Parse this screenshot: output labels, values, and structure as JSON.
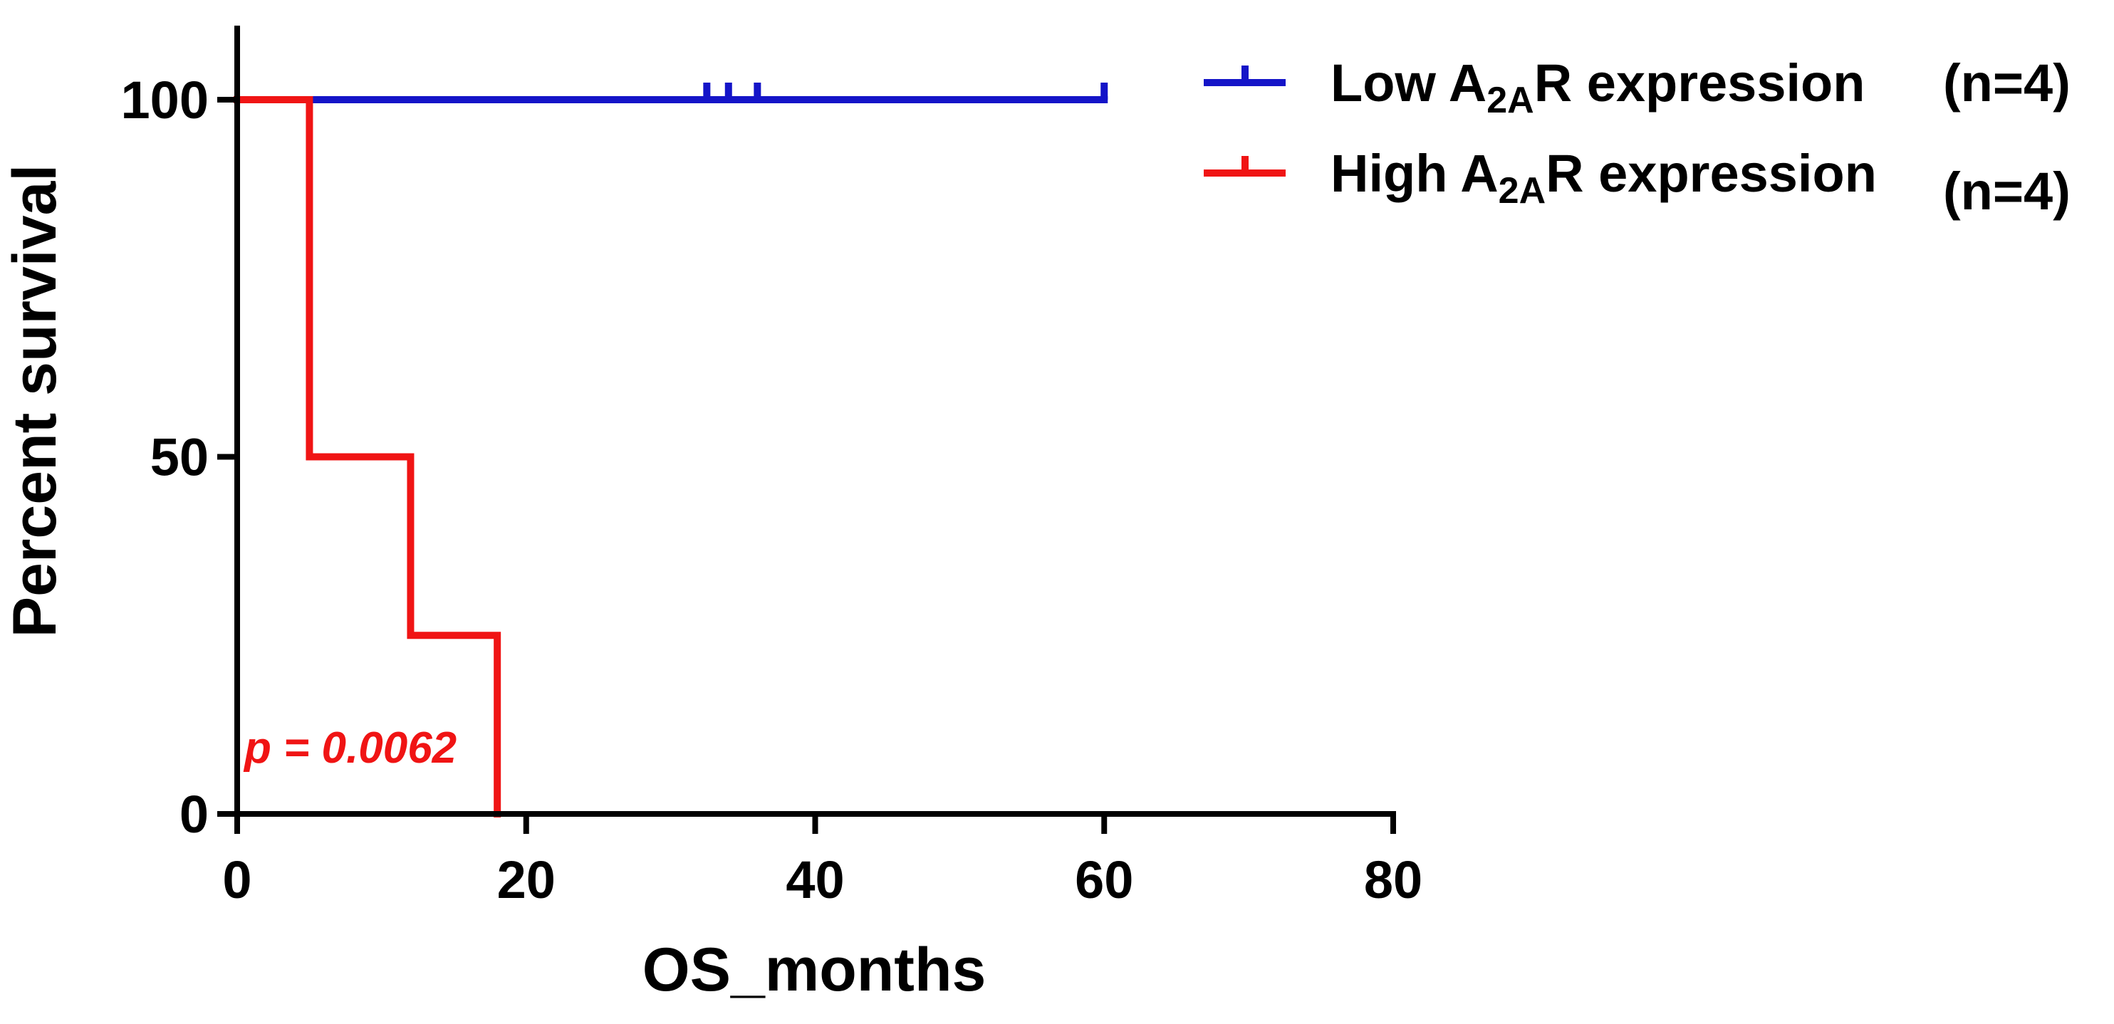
{
  "chart_data": {
    "type": "line",
    "subtype": "kaplan-meier",
    "xlabel": "OS_months",
    "ylabel": "Percent survival",
    "xlim": [
      0,
      80
    ],
    "ylim": [
      0,
      100
    ],
    "x_ticks": [
      "0",
      "20",
      "40",
      "60",
      "80"
    ],
    "y_ticks": [
      "0",
      "50",
      "100"
    ],
    "grid": false,
    "legend_position": "top-right",
    "series": [
      {
        "name_prefix": "Low A",
        "name_sub": "2A",
        "name_suffix": "R expression",
        "n_label": "(n=4)",
        "color": "#1414c8",
        "steps": [
          [
            0,
            100
          ],
          [
            60,
            100
          ]
        ],
        "censored": [
          [
            32.5,
            100
          ],
          [
            34,
            100
          ],
          [
            36,
            100
          ],
          [
            60,
            100
          ]
        ]
      },
      {
        "name_prefix": "High A",
        "name_sub": "2A",
        "name_suffix": "R expression",
        "n_label": "(n=4)",
        "color": "#f01414",
        "steps": [
          [
            0,
            100
          ],
          [
            5,
            100
          ],
          [
            5,
            50
          ],
          [
            12,
            50
          ],
          [
            12,
            25
          ],
          [
            18,
            25
          ],
          [
            18,
            0
          ]
        ],
        "censored": []
      }
    ],
    "annotations": [
      {
        "text": "p = 0.0062",
        "color": "#f01414"
      }
    ]
  }
}
